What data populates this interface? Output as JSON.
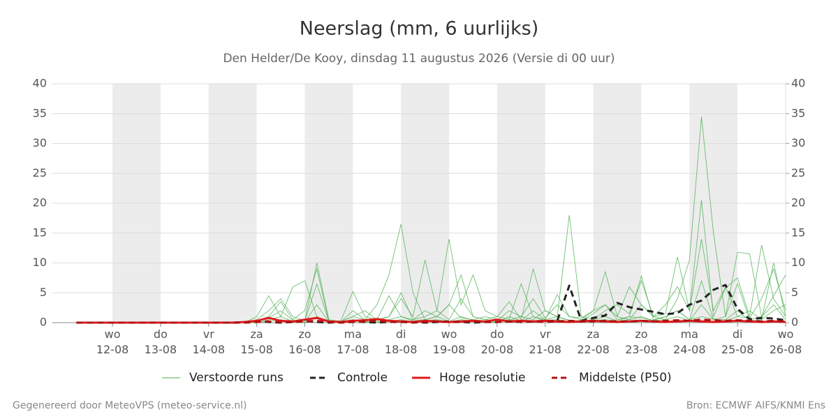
{
  "chart_data": {
    "type": "line",
    "title": "Neerslag (mm, 6 uurlijks)",
    "subtitle": "Den Helder/De Kooy, dinsdag 11 augustus 2026 (Versie di 00 uur)",
    "x": [
      0.25,
      0.5,
      0.75,
      1,
      1.25,
      1.5,
      1.75,
      2,
      2.25,
      2.5,
      2.75,
      3,
      3.25,
      3.5,
      3.75,
      4,
      4.25,
      4.5,
      4.75,
      5,
      5.25,
      5.5,
      5.75,
      6,
      6.25,
      6.5,
      6.75,
      7,
      7.25,
      7.5,
      7.75,
      8,
      8.25,
      8.5,
      8.75,
      9,
      9.25,
      9.5,
      9.75,
      10,
      10.25,
      10.5,
      10.75,
      11,
      11.25,
      11.5,
      11.75,
      12,
      12.25,
      12.5,
      12.75,
      13,
      13.25,
      13.5,
      13.75,
      14,
      14.25,
      14.5,
      14.75,
      15
    ],
    "xlim": [
      -0.25,
      15
    ],
    "xticks": [
      {
        "value": 1,
        "label": "wo\n12-08"
      },
      {
        "value": 2,
        "label": "do\n13-08"
      },
      {
        "value": 3,
        "label": "vr\n14-08"
      },
      {
        "value": 4,
        "label": "za\n15-08"
      },
      {
        "value": 5,
        "label": "zo\n16-08"
      },
      {
        "value": 6,
        "label": "ma\n17-08"
      },
      {
        "value": 7,
        "label": "di\n18-08"
      },
      {
        "value": 8,
        "label": "wo\n19-08"
      },
      {
        "value": 9,
        "label": "do\n20-08"
      },
      {
        "value": 10,
        "label": "vr\n21-08"
      },
      {
        "value": 11,
        "label": "za\n22-08"
      },
      {
        "value": 12,
        "label": "zo\n23-08"
      },
      {
        "value": 13,
        "label": "ma\n24-08"
      },
      {
        "value": 14,
        "label": "di\n25-08"
      },
      {
        "value": 15,
        "label": "wo\n26-08"
      }
    ],
    "ylim": [
      0,
      40
    ],
    "yticks": [
      0,
      5,
      10,
      15,
      20,
      25,
      30,
      35,
      40
    ],
    "y2lim": [
      0,
      40
    ],
    "y2ticks": [
      0,
      5,
      10,
      15,
      20,
      25,
      30,
      35,
      40
    ],
    "grid": true,
    "legend": "bottom",
    "series": [
      {
        "name": "Verstoorde runs",
        "color": "#4caf50",
        "members": [
          [
            0,
            0,
            0,
            0,
            0,
            0,
            0,
            0,
            0,
            0,
            0,
            0,
            0,
            0,
            0,
            0.5,
            2,
            4,
            1,
            0.3,
            10,
            0.5,
            0.2,
            1,
            0.5,
            3,
            8,
            16.5,
            5,
            0.5,
            1,
            3,
            0.8,
            0.5,
            1,
            0.6,
            0.4,
            1,
            0.5,
            2,
            1,
            0.4,
            0.3,
            1.5,
            3,
            0.5,
            1,
            0.8,
            0.4,
            1,
            2,
            0.5,
            1,
            0.6,
            0.3,
            1,
            0.8,
            4,
            9,
            2
          ],
          [
            0,
            0,
            0,
            0,
            0,
            0,
            0,
            0,
            0,
            0,
            0,
            0,
            0,
            0,
            0,
            1,
            4.5,
            1,
            6,
            7,
            1,
            0.2,
            0.3,
            5.2,
            1,
            0.5,
            1,
            4,
            1,
            10.5,
            2,
            14,
            3,
            8,
            2,
            1,
            3.5,
            0.5,
            9,
            2,
            1,
            18,
            1,
            0.5,
            2,
            3,
            1.5,
            7,
            1,
            3,
            6,
            2,
            20.5,
            1,
            5.8,
            7.5,
            1,
            13,
            4,
            1
          ],
          [
            0,
            0,
            0,
            0,
            0,
            0,
            0,
            0,
            0,
            0,
            0,
            0,
            0,
            0,
            0,
            0.3,
            1,
            3.5,
            0.5,
            2,
            9,
            0.3,
            0.2,
            1,
            2,
            0.5,
            4.5,
            1,
            0.5,
            2,
            1,
            3,
            8,
            1,
            0.5,
            1,
            0.6,
            6.5,
            1,
            0.5,
            4.7,
            1,
            0.8,
            2,
            8.5,
            1,
            0.5,
            3,
            1,
            0.5,
            4,
            10.5,
            34.5,
            15,
            1,
            11.8,
            11.5,
            1,
            3,
            0.5
          ],
          [
            0,
            0,
            0,
            0,
            0,
            0,
            0,
            0,
            0,
            0,
            0,
            0,
            0,
            0,
            0,
            0.2,
            0.8,
            2,
            0.4,
            0.3,
            6.5,
            0.2,
            0.1,
            2,
            0.5,
            0.3,
            1,
            5,
            0.5,
            1,
            2,
            0.5,
            4,
            1,
            0.5,
            0.3,
            2,
            1,
            4,
            0.8,
            3,
            1,
            0.5,
            2,
            3,
            1,
            6,
            3,
            1,
            1.5,
            11,
            2,
            14,
            2,
            6,
            1,
            2,
            0.5,
            10,
            1
          ],
          [
            0,
            0,
            0,
            0,
            0,
            0,
            0,
            0,
            0,
            0,
            0,
            0,
            0,
            0,
            0,
            0,
            0.5,
            1,
            0.2,
            0.1,
            3,
            0.1,
            0.1,
            0.5,
            0.2,
            0.1,
            0.5,
            1,
            0.3,
            0.5,
            1,
            0.2,
            1,
            0.4,
            0.2,
            0.1,
            1,
            0.3,
            2,
            0.5,
            1,
            0.3,
            0.2,
            0.5,
            1,
            0.3,
            1,
            7.8,
            0.5,
            1,
            2,
            0.5,
            7,
            0.5,
            1,
            6.5,
            0.5,
            1,
            4.5,
            8
          ],
          [
            0,
            0,
            0,
            0,
            0,
            0,
            0,
            0,
            0,
            0,
            0,
            0,
            0,
            0,
            0,
            0,
            0.2,
            0.5,
            0.1,
            0,
            1,
            0.1,
            0,
            0.3,
            0.1,
            0,
            0.2,
            0.5,
            0.1,
            0.3,
            0.5,
            0.1,
            0.5,
            0.2,
            0.1,
            0,
            0.5,
            0.2,
            1,
            0.3,
            0.5,
            0.2,
            0.1,
            0.3,
            0.5,
            0.2,
            0.5,
            1,
            0.3,
            0.5,
            1,
            0.3,
            3,
            0.5,
            0.5,
            2,
            0.3,
            0.5,
            2,
            3
          ]
        ]
      },
      {
        "name": "Controle",
        "color": "#222222",
        "dash": true,
        "values": [
          0,
          0,
          0,
          0,
          0,
          0,
          0,
          0,
          0,
          0,
          0,
          0,
          0,
          0,
          0.1,
          0.2,
          0.1,
          0,
          0.1,
          0.3,
          0.1,
          0,
          0.1,
          0.2,
          0.1,
          0,
          0.1,
          0.2,
          0.1,
          0,
          0.1,
          0.2,
          0.1,
          0,
          0.1,
          0.1,
          0.2,
          0.1,
          0.2,
          0.3,
          0.3,
          6.2,
          0.3,
          0.8,
          1.2,
          3.3,
          2.6,
          2.2,
          1.8,
          1.4,
          1.6,
          3,
          3.7,
          5.5,
          6.3,
          2.3,
          0.6,
          0.8,
          0.7,
          0.4
        ]
      },
      {
        "name": "Hoge resolutie",
        "color": "#e0191b",
        "dash": false,
        "values": [
          0,
          0,
          0,
          0,
          0,
          0,
          0,
          0,
          0,
          0,
          0,
          0,
          0,
          0,
          0.1,
          0.3,
          0.8,
          0.3,
          0.2,
          0.5,
          0.8,
          0.2,
          0.1,
          0.3,
          0.4,
          0.6,
          0.3,
          0.2,
          0.1,
          0.3,
          0.2,
          0.1,
          0.2,
          0.3,
          0.2,
          0.5,
          0.2,
          0.3,
          0.2,
          0.3,
          0.2,
          0.1,
          0.2,
          0.3,
          0.2,
          0.1,
          0.2,
          0.3,
          0.2,
          0.1,
          0.2,
          0.3,
          0.2,
          0.1,
          0.2,
          0.3,
          0.2,
          0.1,
          0.2,
          0.1
        ]
      },
      {
        "name": "Middelste (P50)",
        "color": "#b01010",
        "dash": true,
        "values": [
          0,
          0,
          0,
          0,
          0,
          0,
          0,
          0,
          0,
          0,
          0,
          0,
          0,
          0,
          0,
          0.1,
          0.2,
          0.1,
          0.1,
          0.2,
          0.3,
          0.1,
          0,
          0.1,
          0.2,
          0.3,
          0.1,
          0.1,
          0,
          0.1,
          0.2,
          0.1,
          0.1,
          0.2,
          0.1,
          0.1,
          0.2,
          0.1,
          0.2,
          0.1,
          0.2,
          0.3,
          0.2,
          0.2,
          0.3,
          0.2,
          0.2,
          0.3,
          0.2,
          0.3,
          0.4,
          0.3,
          0.5,
          0.4,
          0.3,
          0.4,
          0.3,
          0.2,
          0.3,
          0.2
        ]
      }
    ]
  },
  "footer": {
    "left": "Gegenereerd door MeteoVPS (meteo-service.nl)",
    "right": "Bron: ECMWF AIFS/KNMI Ens"
  }
}
